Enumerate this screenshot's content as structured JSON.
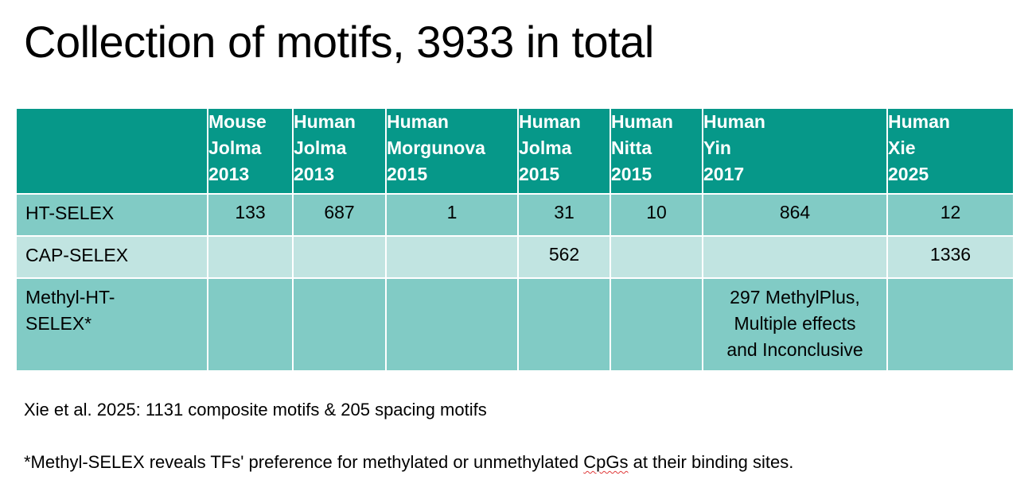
{
  "title": "Collection of motifs, 3933 in total",
  "table": {
    "columns": [
      {
        "lines": [
          "Mouse",
          "Jolma",
          "2013"
        ]
      },
      {
        "lines": [
          "Human",
          "Jolma",
          "2013"
        ]
      },
      {
        "lines": [
          "Human",
          "Morgunova",
          "2015"
        ]
      },
      {
        "lines": [
          "Human",
          "Jolma",
          "2015"
        ]
      },
      {
        "lines": [
          "Human",
          "Nitta",
          "2015"
        ]
      },
      {
        "lines": [
          "Human",
          "Yin",
          "2017"
        ]
      },
      {
        "lines": [
          "Human",
          "Xie",
          "2025"
        ]
      }
    ],
    "rows": [
      {
        "label": "HT-SELEX",
        "values": [
          "133",
          "687",
          "1",
          "31",
          "10",
          "864",
          "12"
        ]
      },
      {
        "label": "CAP-SELEX",
        "values": [
          "",
          "",
          "",
          "562",
          "",
          "",
          "1336"
        ]
      },
      {
        "label_lines": [
          "Methyl-HT-",
          "SELEX*"
        ],
        "values": [
          "",
          "",
          "",
          "",
          "",
          "",
          ""
        ],
        "yin_2017_lines": [
          "297 MethylPlus,",
          "Multiple effects",
          "and Inconclusive"
        ]
      }
    ]
  },
  "notes": {
    "note1": "Xie et al. 2025: 1131 composite motifs & 205 spacing motifs",
    "note2_before": "*Methyl-SELEX reveals TFs' preference for methylated or unmethylated ",
    "note2_flagged": "CpGs",
    "note2_after": " at their binding sites."
  },
  "colors": {
    "header_bg": "#069889",
    "row_dark": "#81cbc5",
    "row_light": "#c1e4e1"
  }
}
